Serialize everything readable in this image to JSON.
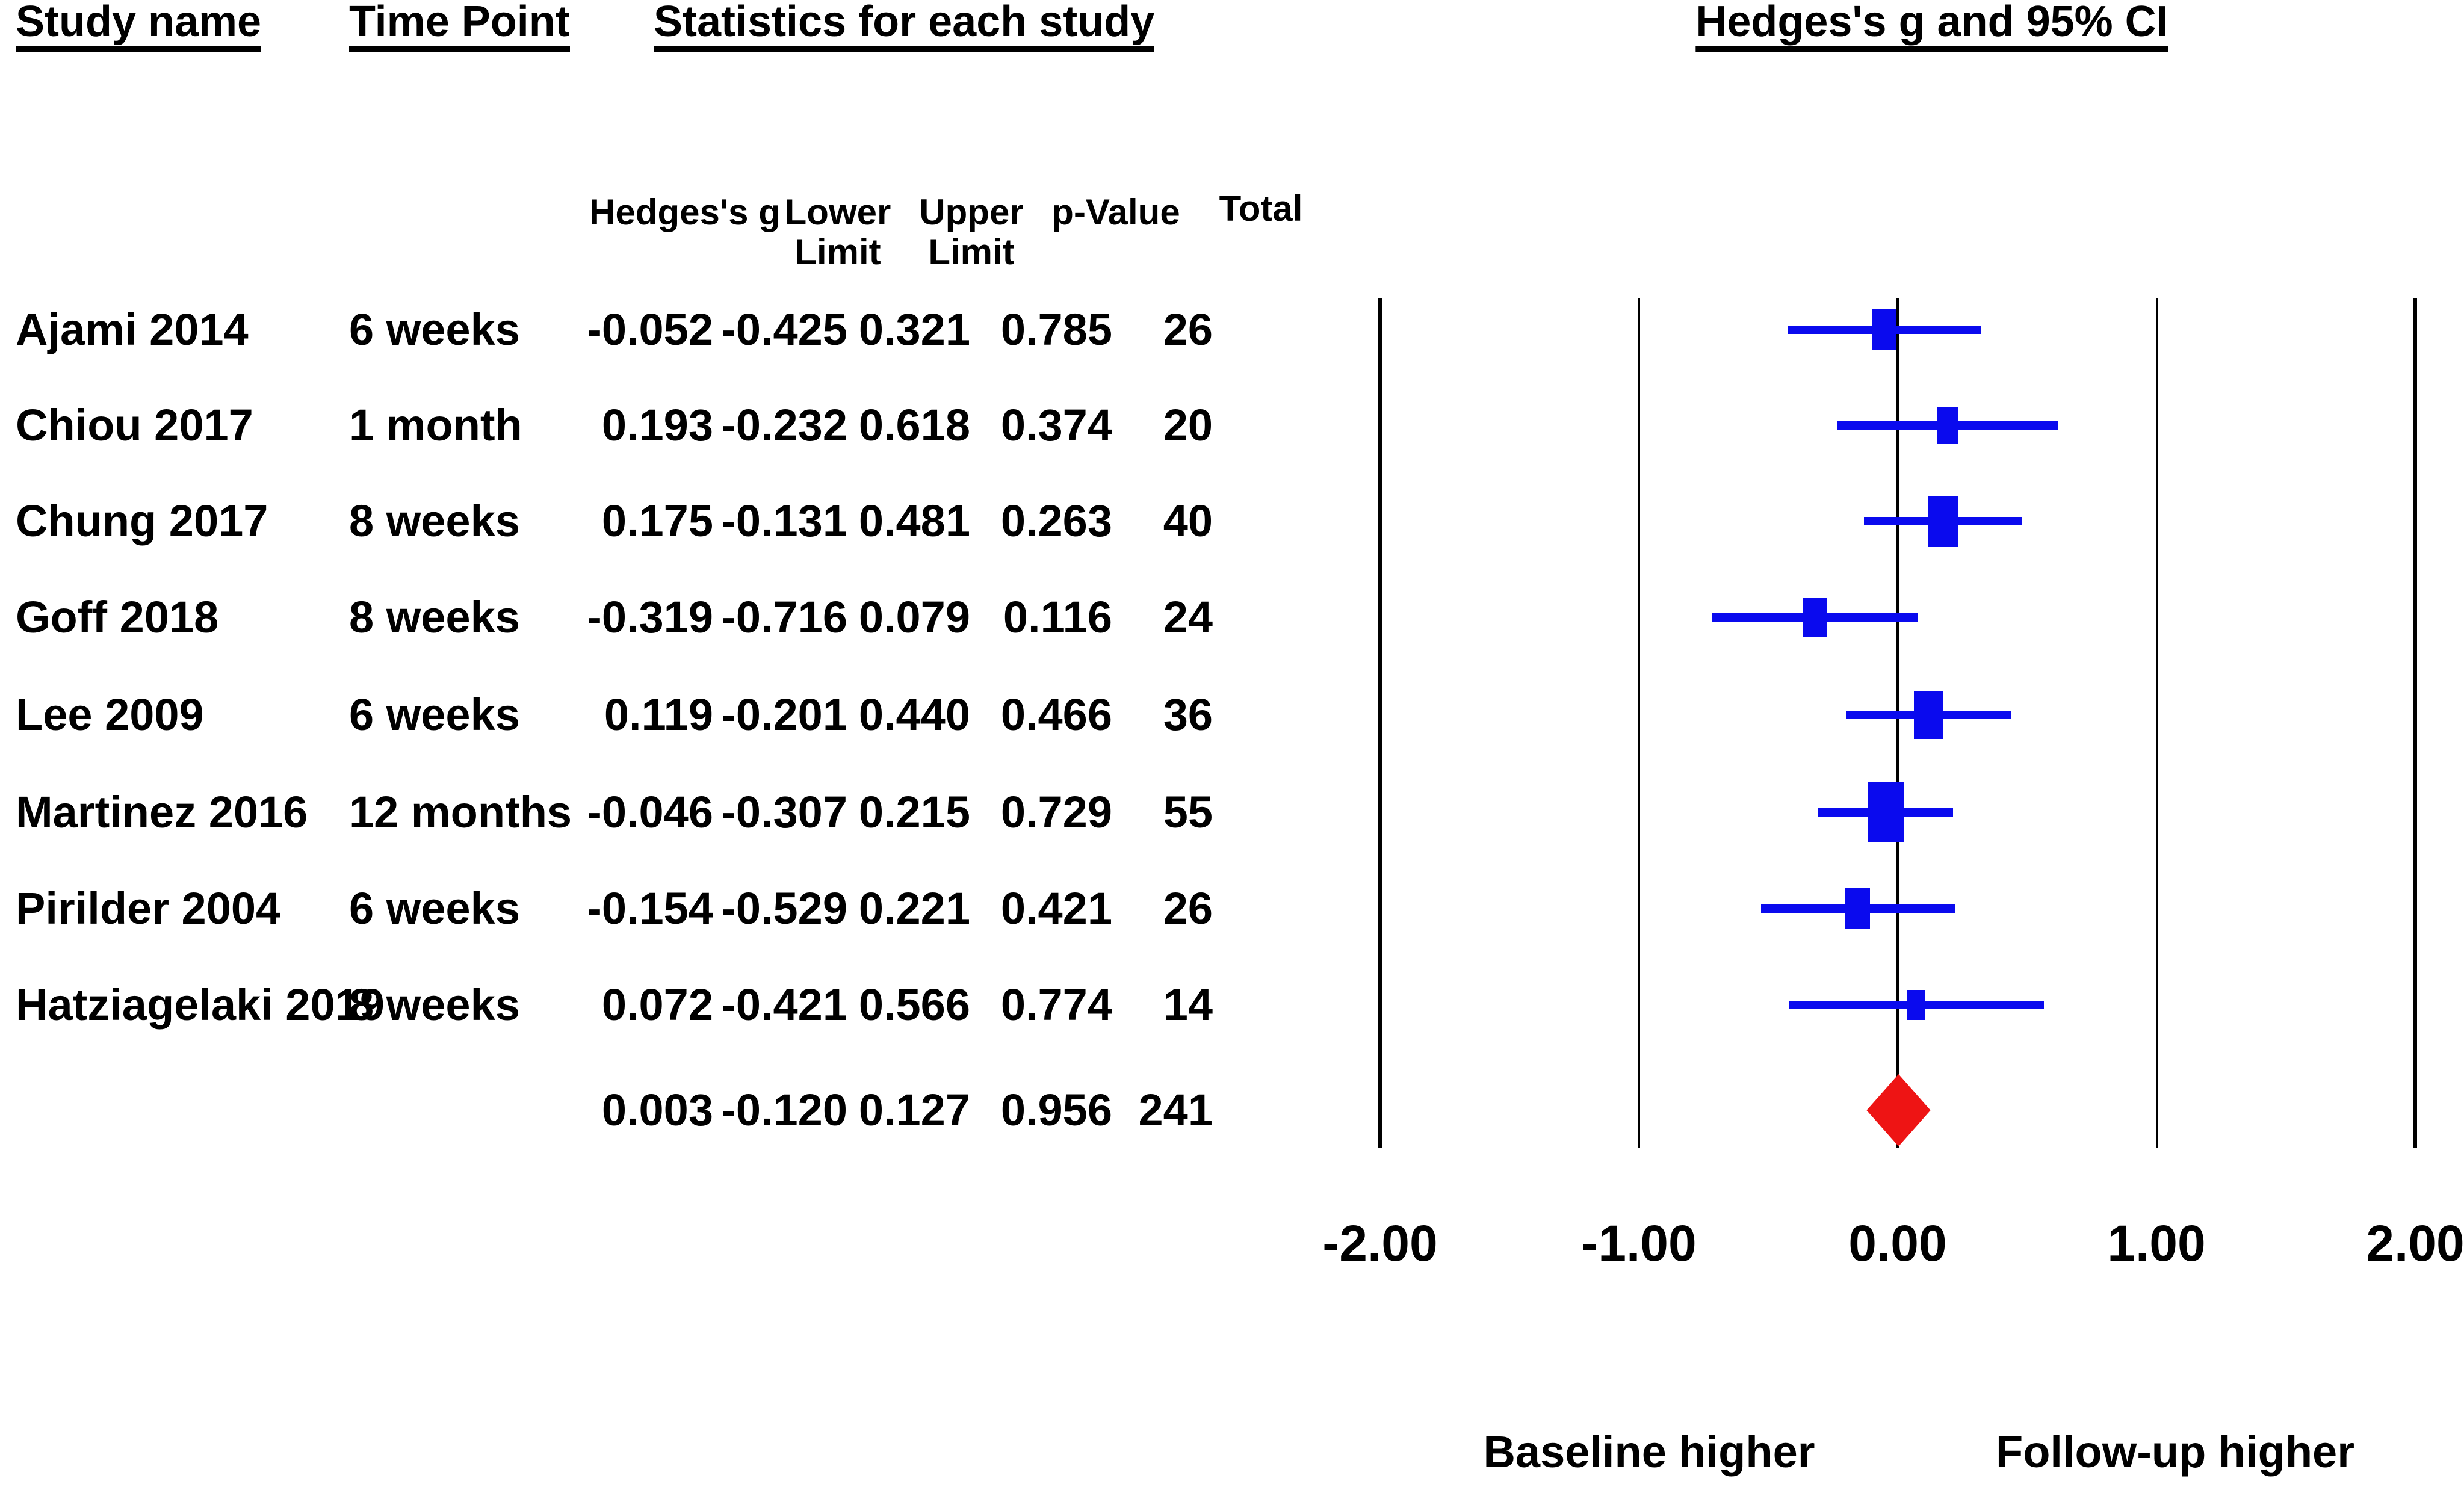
{
  "chart_data": {
    "type": "scatter",
    "variant": "forest-plot-meta-analysis",
    "title": "Hedges's g and 95% CI",
    "columns_header": {
      "study_name": "Study name",
      "time_point": "Time Point",
      "statistics": "Statistics for each study"
    },
    "stat_columns": {
      "hedges_g": "Hedges's g",
      "lower": "Lower",
      "upper": "Upper",
      "limit": "Limit",
      "p_value": "p-Value",
      "total": "Total"
    },
    "studies": [
      {
        "name": "Ajami 2014",
        "time_point": "6 weeks",
        "hedges_g": "-0.052",
        "lower": "-0.425",
        "upper": "0.321",
        "p_value": "0.785",
        "total": "26"
      },
      {
        "name": "Chiou 2017",
        "time_point": "1 month",
        "hedges_g": "0.193",
        "lower": "-0.232",
        "upper": "0.618",
        "p_value": "0.374",
        "total": "20"
      },
      {
        "name": "Chung 2017",
        "time_point": "8 weeks",
        "hedges_g": "0.175",
        "lower": "-0.131",
        "upper": "0.481",
        "p_value": "0.263",
        "total": "40"
      },
      {
        "name": "Goff 2018",
        "time_point": "8 weeks",
        "hedges_g": "-0.319",
        "lower": "-0.716",
        "upper": "0.079",
        "p_value": "0.116",
        "total": "24"
      },
      {
        "name": "Lee 2009",
        "time_point": "6 weeks",
        "hedges_g": "0.119",
        "lower": "-0.201",
        "upper": "0.440",
        "p_value": "0.466",
        "total": "36"
      },
      {
        "name": "Martinez 2016",
        "time_point": "12 months",
        "hedges_g": "-0.046",
        "lower": "-0.307",
        "upper": "0.215",
        "p_value": "0.729",
        "total": "55"
      },
      {
        "name": "Pirilder 2004",
        "time_point": "6 weeks",
        "hedges_g": "-0.154",
        "lower": "-0.529",
        "upper": "0.221",
        "p_value": "0.421",
        "total": "26"
      },
      {
        "name": "Hatziagelaki 2019",
        "time_point": "8 weeks",
        "hedges_g": "0.072",
        "lower": "-0.421",
        "upper": "0.566",
        "p_value": "0.774",
        "total": "14"
      }
    ],
    "overall": {
      "hedges_g": "0.003",
      "lower": "-0.120",
      "upper": "0.127",
      "p_value": "0.956",
      "total": "241"
    },
    "x_axis": {
      "ticks": [
        "-2.00",
        "-1.00",
        "0.00",
        "1.00",
        "2.00"
      ],
      "values": [
        -2,
        -1,
        0,
        1,
        2
      ],
      "min": -2,
      "max": 2,
      "grid": true
    },
    "footer": {
      "left": "Baseline higher",
      "right": "Follow-up higher"
    },
    "colors": {
      "study_marker": "#0a0aee",
      "overall_diamond": "#ee1414",
      "text": "#000000",
      "grid": "#000000"
    }
  }
}
